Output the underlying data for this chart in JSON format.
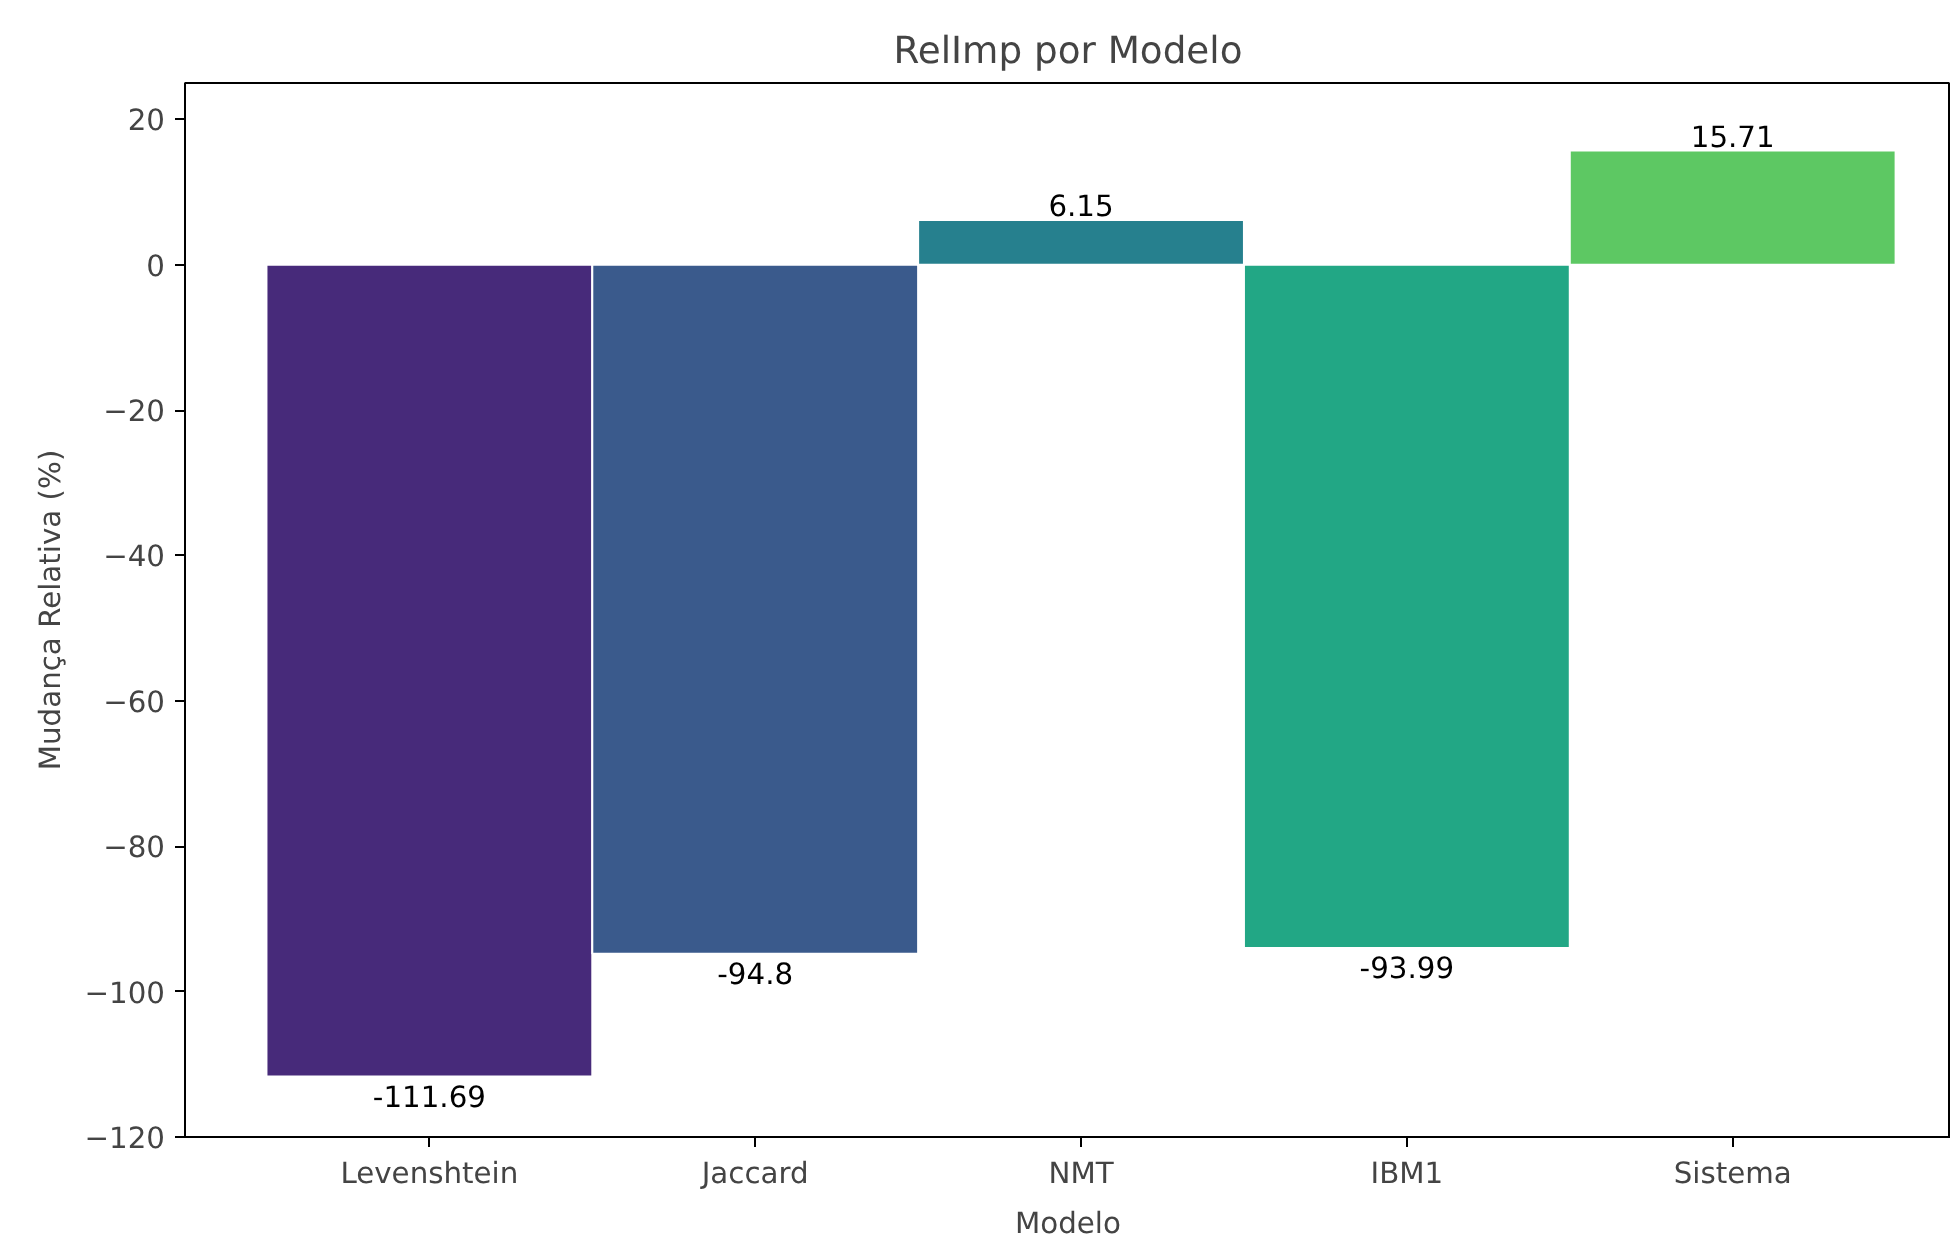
{
  "chart_data": {
    "type": "bar",
    "title": "RelImp por Modelo",
    "xlabel": "Modelo",
    "ylabel": "Mudança Relativa (%)",
    "categories": [
      "Levenshtein",
      "Jaccard",
      "NMT",
      "IBM1",
      "Sistema"
    ],
    "values": [
      -111.69,
      -94.8,
      6.15,
      -93.99,
      15.71
    ],
    "colors": [
      "#472a7a",
      "#3a5a8c",
      "#26808e",
      "#22a785",
      "#5dc863"
    ],
    "ylim": [
      -120,
      25
    ],
    "yticks": [
      {
        "value": -120,
        "label": "−120"
      },
      {
        "value": -100,
        "label": "−100"
      },
      {
        "value": -80,
        "label": "−80"
      },
      {
        "value": -60,
        "label": "−60"
      },
      {
        "value": -40,
        "label": "−40"
      },
      {
        "value": -20,
        "label": "−20"
      },
      0,
      20
    ],
    "data_labels": true,
    "grid": false
  }
}
